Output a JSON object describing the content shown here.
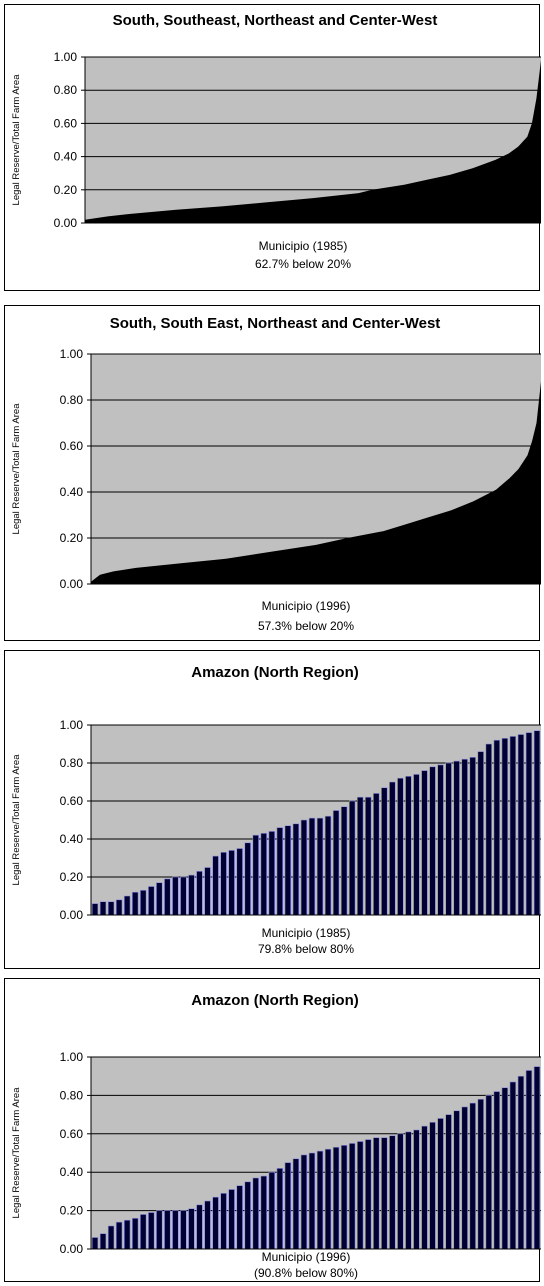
{
  "chart_data": [
    {
      "type": "area",
      "title": "South, Southeast, Northeast and Center-West",
      "ylabel": "Legal Reserve/Total Farm Area",
      "xlabel": "Municipio (1985)",
      "note": "62.7% below 20%",
      "yticks": [
        "1.00",
        "0.80",
        "0.60",
        "0.40",
        "0.20",
        "0.00"
      ],
      "ylim": [
        0,
        1
      ],
      "grid": true,
      "plot_bg": "#c0c0c0",
      "fill_color": "#000000",
      "series": [
        {
          "x": [
            0,
            0.05,
            0.1,
            0.2,
            0.3,
            0.4,
            0.5,
            0.6,
            0.63,
            0.7,
            0.75,
            0.8,
            0.85,
            0.9,
            0.93,
            0.95,
            0.97,
            0.98,
            0.99,
            1.0
          ],
          "values": [
            0.02,
            0.04,
            0.055,
            0.08,
            0.1,
            0.125,
            0.15,
            0.18,
            0.2,
            0.23,
            0.26,
            0.29,
            0.33,
            0.38,
            0.42,
            0.46,
            0.52,
            0.6,
            0.75,
            0.98
          ]
        }
      ]
    },
    {
      "type": "area",
      "title": "South, South East, Northeast and Center-West",
      "ylabel": "Legal Reserve/Total Farm Area",
      "xlabel": "Municipio (1996)",
      "note": "57.3% below 20%",
      "yticks": [
        "1.00",
        "0.80",
        "0.60",
        "0.40",
        "0.20",
        "0.00"
      ],
      "ylim": [
        0,
        1
      ],
      "grid": true,
      "plot_bg": "#c0c0c0",
      "fill_color": "#000000",
      "series": [
        {
          "x": [
            0,
            0.02,
            0.05,
            0.1,
            0.2,
            0.3,
            0.4,
            0.5,
            0.57,
            0.65,
            0.7,
            0.75,
            0.8,
            0.85,
            0.9,
            0.93,
            0.95,
            0.97,
            0.98,
            0.99,
            1.0
          ],
          "values": [
            0.01,
            0.04,
            0.055,
            0.07,
            0.09,
            0.11,
            0.14,
            0.17,
            0.2,
            0.23,
            0.26,
            0.29,
            0.32,
            0.36,
            0.41,
            0.46,
            0.5,
            0.56,
            0.62,
            0.7,
            0.88
          ]
        }
      ]
    },
    {
      "type": "bar",
      "title": "Amazon (North Region)",
      "ylabel": "Legal Reserve/Total Farm Area",
      "xlabel": "Municipio (1985)",
      "note": "79.8% below 80%",
      "yticks": [
        "1.00",
        "0.80",
        "0.60",
        "0.40",
        "0.20",
        "0.00"
      ],
      "ylim": [
        0,
        1
      ],
      "grid": true,
      "plot_bg": "#c0c0c0",
      "bar_color": "#000033",
      "bar_edge": "#9090e0",
      "values": [
        0.06,
        0.07,
        0.07,
        0.08,
        0.1,
        0.12,
        0.13,
        0.15,
        0.17,
        0.19,
        0.2,
        0.2,
        0.21,
        0.23,
        0.25,
        0.31,
        0.33,
        0.34,
        0.35,
        0.38,
        0.42,
        0.43,
        0.44,
        0.46,
        0.47,
        0.48,
        0.5,
        0.51,
        0.51,
        0.52,
        0.55,
        0.57,
        0.6,
        0.62,
        0.62,
        0.64,
        0.67,
        0.7,
        0.72,
        0.73,
        0.74,
        0.76,
        0.78,
        0.79,
        0.8,
        0.81,
        0.82,
        0.83,
        0.86,
        0.9,
        0.92,
        0.93,
        0.94,
        0.95,
        0.96,
        0.97
      ]
    },
    {
      "type": "bar",
      "title": "Amazon (North Region)",
      "ylabel": "Legal Reserve/Total Farm Area",
      "xlabel": "Municipio (1996)",
      "note": "(90.8% below 80%)",
      "yticks": [
        "1.00",
        "0.80",
        "0.60",
        "0.40",
        "0.20",
        "0.00"
      ],
      "ylim": [
        0,
        1
      ],
      "grid": true,
      "plot_bg": "#c0c0c0",
      "bar_color": "#000033",
      "bar_edge": "#9090e0",
      "values": [
        0.06,
        0.08,
        0.12,
        0.14,
        0.15,
        0.16,
        0.18,
        0.19,
        0.2,
        0.2,
        0.2,
        0.2,
        0.21,
        0.23,
        0.25,
        0.27,
        0.29,
        0.31,
        0.33,
        0.35,
        0.37,
        0.38,
        0.4,
        0.42,
        0.45,
        0.47,
        0.49,
        0.5,
        0.51,
        0.52,
        0.53,
        0.54,
        0.55,
        0.56,
        0.57,
        0.58,
        0.58,
        0.59,
        0.6,
        0.61,
        0.62,
        0.64,
        0.66,
        0.68,
        0.7,
        0.72,
        0.74,
        0.76,
        0.78,
        0.8,
        0.82,
        0.84,
        0.87,
        0.9,
        0.93,
        0.95
      ]
    }
  ]
}
